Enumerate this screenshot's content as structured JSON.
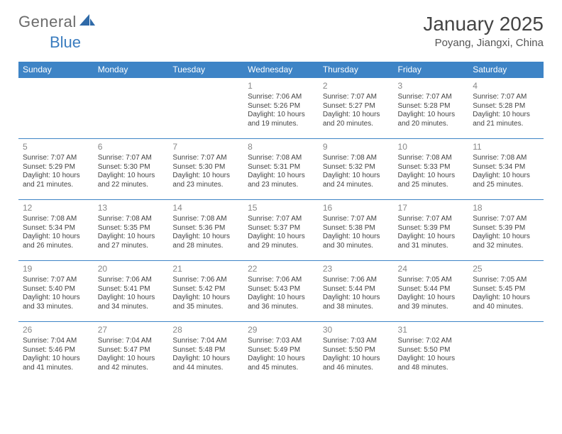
{
  "brand": {
    "text_a": "General",
    "text_b": "Blue"
  },
  "title": "January 2025",
  "location": "Poyang, Jiangxi, China",
  "colors": {
    "header_bg": "#3e84c6",
    "header_text": "#ffffff",
    "row_border": "#3e84c6",
    "daynum": "#888888",
    "body_text": "#444444",
    "logo_gray": "#6b6b6b",
    "logo_blue": "#3a7cbf",
    "sail_fill": "#2f6aa8"
  },
  "day_headers": [
    "Sunday",
    "Monday",
    "Tuesday",
    "Wednesday",
    "Thursday",
    "Friday",
    "Saturday"
  ],
  "weeks": [
    [
      null,
      null,
      null,
      {
        "n": "1",
        "sunrise": "7:06 AM",
        "sunset": "5:26 PM",
        "dl_h": "10",
        "dl_m": "19"
      },
      {
        "n": "2",
        "sunrise": "7:07 AM",
        "sunset": "5:27 PM",
        "dl_h": "10",
        "dl_m": "20"
      },
      {
        "n": "3",
        "sunrise": "7:07 AM",
        "sunset": "5:28 PM",
        "dl_h": "10",
        "dl_m": "20"
      },
      {
        "n": "4",
        "sunrise": "7:07 AM",
        "sunset": "5:28 PM",
        "dl_h": "10",
        "dl_m": "21"
      }
    ],
    [
      {
        "n": "5",
        "sunrise": "7:07 AM",
        "sunset": "5:29 PM",
        "dl_h": "10",
        "dl_m": "21"
      },
      {
        "n": "6",
        "sunrise": "7:07 AM",
        "sunset": "5:30 PM",
        "dl_h": "10",
        "dl_m": "22"
      },
      {
        "n": "7",
        "sunrise": "7:07 AM",
        "sunset": "5:30 PM",
        "dl_h": "10",
        "dl_m": "23"
      },
      {
        "n": "8",
        "sunrise": "7:08 AM",
        "sunset": "5:31 PM",
        "dl_h": "10",
        "dl_m": "23"
      },
      {
        "n": "9",
        "sunrise": "7:08 AM",
        "sunset": "5:32 PM",
        "dl_h": "10",
        "dl_m": "24"
      },
      {
        "n": "10",
        "sunrise": "7:08 AM",
        "sunset": "5:33 PM",
        "dl_h": "10",
        "dl_m": "25"
      },
      {
        "n": "11",
        "sunrise": "7:08 AM",
        "sunset": "5:34 PM",
        "dl_h": "10",
        "dl_m": "25"
      }
    ],
    [
      {
        "n": "12",
        "sunrise": "7:08 AM",
        "sunset": "5:34 PM",
        "dl_h": "10",
        "dl_m": "26"
      },
      {
        "n": "13",
        "sunrise": "7:08 AM",
        "sunset": "5:35 PM",
        "dl_h": "10",
        "dl_m": "27"
      },
      {
        "n": "14",
        "sunrise": "7:08 AM",
        "sunset": "5:36 PM",
        "dl_h": "10",
        "dl_m": "28"
      },
      {
        "n": "15",
        "sunrise": "7:07 AM",
        "sunset": "5:37 PM",
        "dl_h": "10",
        "dl_m": "29"
      },
      {
        "n": "16",
        "sunrise": "7:07 AM",
        "sunset": "5:38 PM",
        "dl_h": "10",
        "dl_m": "30"
      },
      {
        "n": "17",
        "sunrise": "7:07 AM",
        "sunset": "5:39 PM",
        "dl_h": "10",
        "dl_m": "31"
      },
      {
        "n": "18",
        "sunrise": "7:07 AM",
        "sunset": "5:39 PM",
        "dl_h": "10",
        "dl_m": "32"
      }
    ],
    [
      {
        "n": "19",
        "sunrise": "7:07 AM",
        "sunset": "5:40 PM",
        "dl_h": "10",
        "dl_m": "33"
      },
      {
        "n": "20",
        "sunrise": "7:06 AM",
        "sunset": "5:41 PM",
        "dl_h": "10",
        "dl_m": "34"
      },
      {
        "n": "21",
        "sunrise": "7:06 AM",
        "sunset": "5:42 PM",
        "dl_h": "10",
        "dl_m": "35"
      },
      {
        "n": "22",
        "sunrise": "7:06 AM",
        "sunset": "5:43 PM",
        "dl_h": "10",
        "dl_m": "36"
      },
      {
        "n": "23",
        "sunrise": "7:06 AM",
        "sunset": "5:44 PM",
        "dl_h": "10",
        "dl_m": "38"
      },
      {
        "n": "24",
        "sunrise": "7:05 AM",
        "sunset": "5:44 PM",
        "dl_h": "10",
        "dl_m": "39"
      },
      {
        "n": "25",
        "sunrise": "7:05 AM",
        "sunset": "5:45 PM",
        "dl_h": "10",
        "dl_m": "40"
      }
    ],
    [
      {
        "n": "26",
        "sunrise": "7:04 AM",
        "sunset": "5:46 PM",
        "dl_h": "10",
        "dl_m": "41"
      },
      {
        "n": "27",
        "sunrise": "7:04 AM",
        "sunset": "5:47 PM",
        "dl_h": "10",
        "dl_m": "42"
      },
      {
        "n": "28",
        "sunrise": "7:04 AM",
        "sunset": "5:48 PM",
        "dl_h": "10",
        "dl_m": "44"
      },
      {
        "n": "29",
        "sunrise": "7:03 AM",
        "sunset": "5:49 PM",
        "dl_h": "10",
        "dl_m": "45"
      },
      {
        "n": "30",
        "sunrise": "7:03 AM",
        "sunset": "5:50 PM",
        "dl_h": "10",
        "dl_m": "46"
      },
      {
        "n": "31",
        "sunrise": "7:02 AM",
        "sunset": "5:50 PM",
        "dl_h": "10",
        "dl_m": "48"
      },
      null
    ]
  ],
  "labels": {
    "sunrise": "Sunrise:",
    "sunset": "Sunset:",
    "daylight_pre": "Daylight:",
    "daylight_mid": "hours and",
    "daylight_post": "minutes."
  }
}
